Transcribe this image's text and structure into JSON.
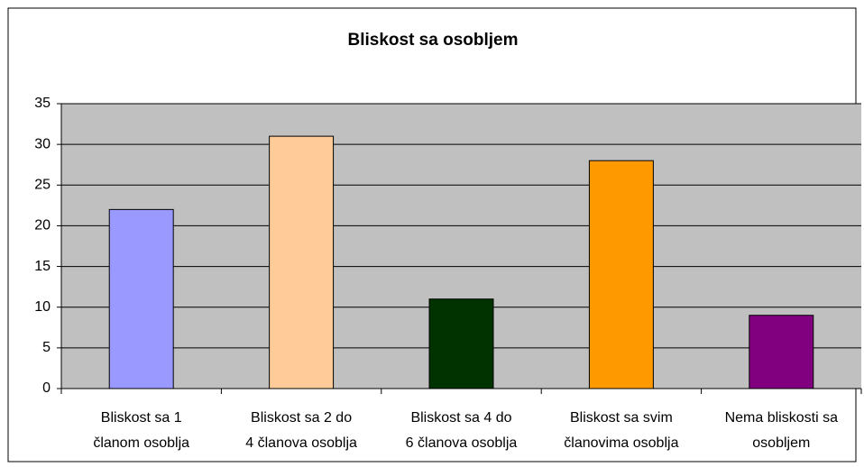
{
  "chart_data": {
    "type": "bar",
    "title": "Bliskost sa osobljem",
    "categories": [
      "Bliskost sa 1\nčlanom osoblja",
      "Bliskost sa 2 do\n4 članova osoblja",
      "Bliskost sa 4 do\n6 članova osoblja",
      "Bliskost sa svim\nčlanovima osoblja",
      "Nema bliskosti sa\nosobljem"
    ],
    "values": [
      22,
      31,
      11,
      28,
      9
    ],
    "colors": [
      "#9999ff",
      "#ffcc99",
      "#003300",
      "#ff9900",
      "#800080"
    ],
    "ylim": [
      0,
      35
    ],
    "yticks": [
      0,
      5,
      10,
      15,
      20,
      25,
      30,
      35
    ],
    "grid": true
  }
}
